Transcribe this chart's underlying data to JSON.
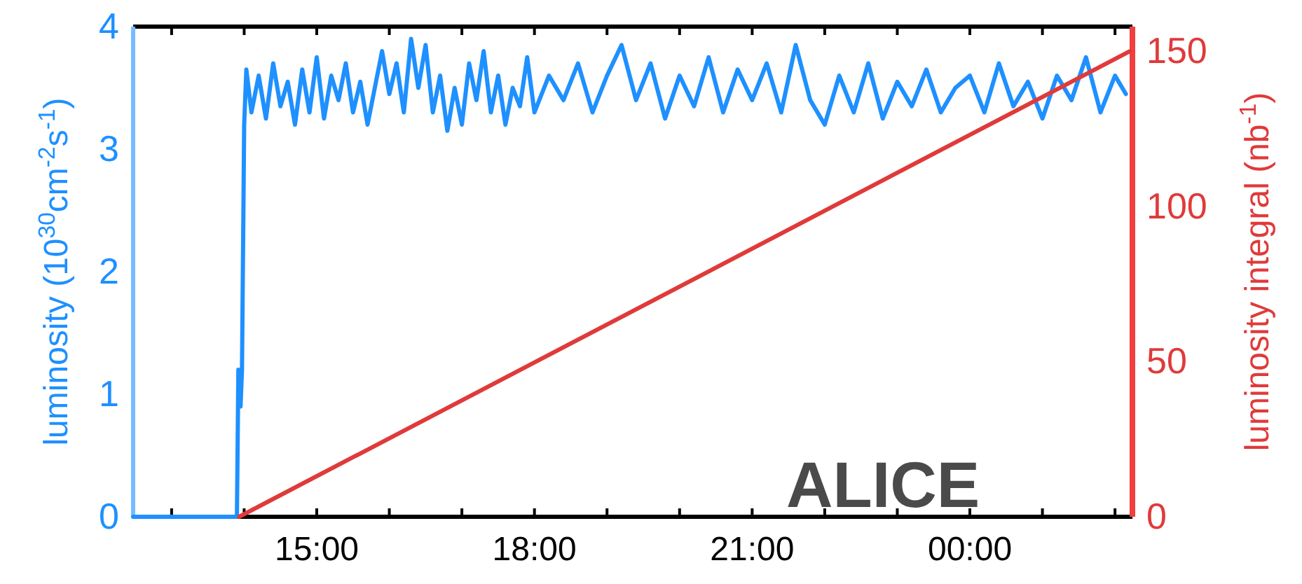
{
  "chart_data": {
    "type": "line",
    "ylabel": "luminosity (10$^{30}$cm$^{-2}$s$^{-1}$)",
    "y2label": "luminosity integral (nb$^{-1}$)",
    "xlim": [
      12.47,
      26.24
    ],
    "xticks": [
      {
        "value": 13,
        "label": null
      },
      {
        "value": 14,
        "label": null
      },
      {
        "value": 15,
        "label": "15:00"
      },
      {
        "value": 16,
        "label": null
      },
      {
        "value": 17,
        "label": null
      },
      {
        "value": 18,
        "label": "18:00"
      },
      {
        "value": 19,
        "label": null
      },
      {
        "value": 20,
        "label": null
      },
      {
        "value": 21,
        "label": "21:00"
      },
      {
        "value": 22,
        "label": null
      },
      {
        "value": 23,
        "label": null
      },
      {
        "value": 24,
        "label": "00:00"
      },
      {
        "value": 25,
        "label": null
      },
      {
        "value": 26,
        "label": null
      }
    ],
    "ylim": [
      0,
      4
    ],
    "yticks": [
      0,
      1,
      2,
      3,
      4
    ],
    "y2lim": [
      0,
      158
    ],
    "y2ticks": [
      0,
      50,
      100,
      150
    ],
    "annotations": [
      "ALICE"
    ],
    "series": [
      {
        "color": "#1e90ff",
        "x": [
          12.47,
          13.9,
          13.92,
          13.95,
          13.97,
          14.0,
          14.03,
          14.1,
          14.2,
          14.3,
          14.4,
          14.5,
          14.6,
          14.7,
          14.8,
          14.9,
          15.0,
          15.1,
          15.2,
          15.3,
          15.4,
          15.5,
          15.6,
          15.7,
          15.8,
          15.9,
          16.0,
          16.1,
          16.2,
          16.3,
          16.4,
          16.5,
          16.6,
          16.7,
          16.8,
          16.9,
          17.0,
          17.1,
          17.2,
          17.3,
          17.4,
          17.5,
          17.6,
          17.7,
          17.8,
          17.9,
          18.0,
          18.2,
          18.4,
          18.6,
          18.8,
          19.0,
          19.2,
          19.4,
          19.6,
          19.8,
          20.0,
          20.2,
          20.4,
          20.6,
          20.8,
          21.0,
          21.2,
          21.4,
          21.6,
          21.8,
          22.0,
          22.2,
          22.4,
          22.6,
          22.8,
          23.0,
          23.2,
          23.4,
          23.6,
          23.8,
          24.0,
          24.2,
          24.4,
          24.6,
          24.8,
          25.0,
          25.2,
          25.4,
          25.6,
          25.8,
          26.0,
          26.15
        ],
        "values": [
          0,
          0,
          1.2,
          0.9,
          1.2,
          3.2,
          3.65,
          3.3,
          3.6,
          3.25,
          3.7,
          3.35,
          3.55,
          3.2,
          3.65,
          3.3,
          3.75,
          3.25,
          3.6,
          3.4,
          3.7,
          3.3,
          3.55,
          3.2,
          3.5,
          3.8,
          3.45,
          3.7,
          3.3,
          3.9,
          3.5,
          3.85,
          3.3,
          3.6,
          3.15,
          3.5,
          3.2,
          3.7,
          3.4,
          3.8,
          3.3,
          3.6,
          3.2,
          3.5,
          3.35,
          3.75,
          3.3,
          3.6,
          3.4,
          3.7,
          3.3,
          3.6,
          3.85,
          3.4,
          3.7,
          3.25,
          3.6,
          3.35,
          3.75,
          3.3,
          3.65,
          3.4,
          3.7,
          3.3,
          3.85,
          3.4,
          3.2,
          3.6,
          3.3,
          3.7,
          3.25,
          3.55,
          3.35,
          3.65,
          3.3,
          3.5,
          3.6,
          3.3,
          3.7,
          3.35,
          3.55,
          3.25,
          3.6,
          3.4,
          3.75,
          3.3,
          3.6,
          3.45
        ]
      },
      {
        "color": "#e03a3a",
        "axis": "y2",
        "x": [
          13.93,
          26.2
        ],
        "values": [
          0,
          150
        ]
      }
    ]
  }
}
